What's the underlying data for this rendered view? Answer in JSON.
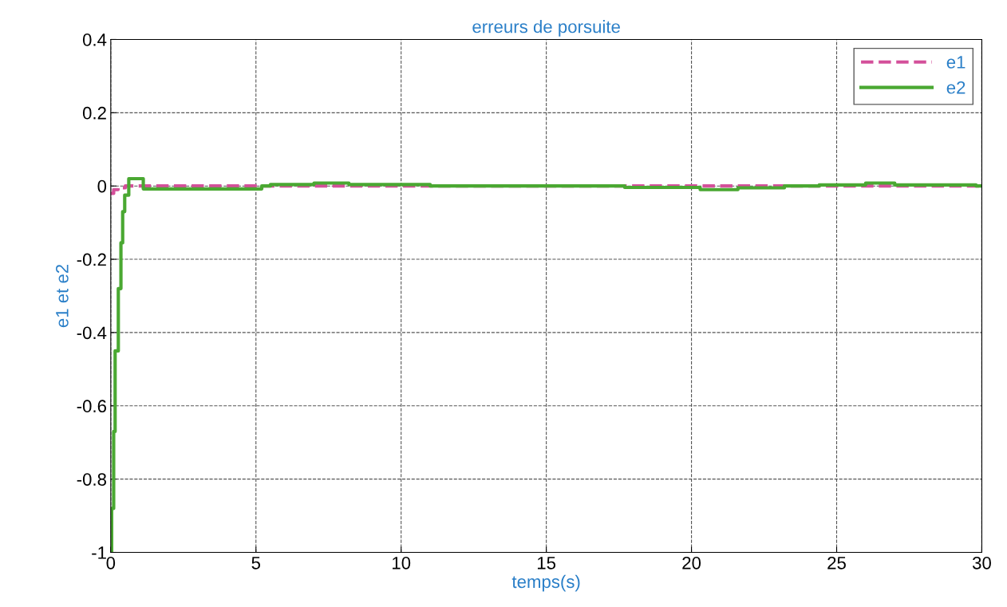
{
  "chart_data": {
    "type": "step",
    "title": "erreurs de porsuite",
    "xlabel": "temps(s)",
    "ylabel": "e1 et e2",
    "xlim": [
      0,
      30
    ],
    "ylim": [
      -1,
      0.4
    ],
    "xticks": [
      0,
      5,
      10,
      15,
      20,
      25,
      30
    ],
    "yticks": [
      -1,
      -0.8,
      -0.6,
      -0.4,
      -0.2,
      0,
      0.2,
      0.4
    ],
    "grid": true,
    "legend": "top right",
    "series": [
      {
        "name": "e1",
        "color": "#d4509a",
        "line_style": "dashed",
        "x": [
          0,
          0.1,
          0.25,
          0.5,
          30
        ],
        "values": [
          -0.02,
          -0.01,
          -0.005,
          0,
          0
        ]
      },
      {
        "name": "e2",
        "color": "#4aa832",
        "line_style": "solid",
        "x": [
          0,
          0.03,
          0.1,
          0.15,
          0.26,
          0.35,
          0.41,
          0.48,
          0.62,
          1.12,
          5.2,
          5.5,
          7,
          8.2,
          11,
          17.7,
          20.3,
          21.6,
          23.2,
          24.4,
          26,
          27,
          29.8,
          30
        ],
        "values": [
          -1,
          -0.88,
          -0.67,
          -0.45,
          -0.28,
          -0.155,
          -0.07,
          -0.025,
          0.02,
          -0.008,
          0,
          0.004,
          0.008,
          0.004,
          0,
          -0.004,
          -0.01,
          -0.005,
          0,
          0.003,
          0.008,
          0.003,
          0,
          0
        ]
      }
    ]
  }
}
